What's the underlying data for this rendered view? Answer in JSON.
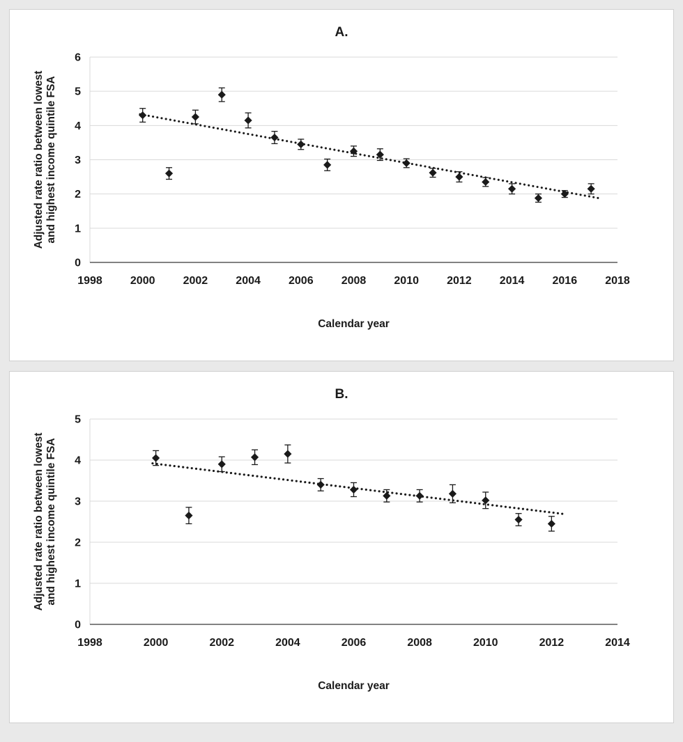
{
  "style": {
    "page_bg": "#e9e9e9",
    "panel_bg": "#ffffff",
    "panel_border": "#cfcfcf",
    "marker_color": "#1a1a1a",
    "grid_color": "#d9d9d9",
    "axis_color": "#595959",
    "text_color": "#1a1a1a"
  },
  "chart_data": [
    {
      "type": "scatter",
      "title": "A.",
      "xlabel": "Calendar year",
      "ylabel_lines": [
        "Adjusted rate ratio between lowest",
        "and highest income quintile FSA"
      ],
      "xlim": [
        1998,
        2018
      ],
      "ylim": [
        0,
        6
      ],
      "xticks": [
        1998,
        2000,
        2002,
        2004,
        2006,
        2008,
        2010,
        2012,
        2014,
        2016,
        2018
      ],
      "yticks": [
        0,
        1,
        2,
        3,
        4,
        5,
        6
      ],
      "grid": "horizontal",
      "legend": "none",
      "points": [
        {
          "x": 2000,
          "y": 4.3,
          "err": 0.2
        },
        {
          "x": 2001,
          "y": 2.6,
          "err": 0.17
        },
        {
          "x": 2002,
          "y": 4.25,
          "err": 0.2
        },
        {
          "x": 2003,
          "y": 4.9,
          "err": 0.2
        },
        {
          "x": 2004,
          "y": 4.15,
          "err": 0.22
        },
        {
          "x": 2005,
          "y": 3.65,
          "err": 0.18
        },
        {
          "x": 2006,
          "y": 3.45,
          "err": 0.15
        },
        {
          "x": 2007,
          "y": 2.85,
          "err": 0.17
        },
        {
          "x": 2008,
          "y": 3.25,
          "err": 0.15
        },
        {
          "x": 2009,
          "y": 3.15,
          "err": 0.17
        },
        {
          "x": 2010,
          "y": 2.9,
          "err": 0.13
        },
        {
          "x": 2011,
          "y": 2.62,
          "err": 0.13
        },
        {
          "x": 2012,
          "y": 2.5,
          "err": 0.15
        },
        {
          "x": 2013,
          "y": 2.35,
          "err": 0.13
        },
        {
          "x": 2014,
          "y": 2.15,
          "err": 0.15
        },
        {
          "x": 2015,
          "y": 1.88,
          "err": 0.12
        },
        {
          "x": 2016,
          "y": 2.0,
          "err": 0.1
        },
        {
          "x": 2017,
          "y": 2.15,
          "err": 0.15
        }
      ],
      "trendline": {
        "x1": 1999.9,
        "y1": 4.33,
        "x2": 2017.35,
        "y2": 1.87,
        "style": "dotted"
      }
    },
    {
      "type": "scatter",
      "title": "B.",
      "xlabel": "Calendar year",
      "ylabel_lines": [
        "Adjusted rate ratio between lowest",
        "and highest income quintile FSA"
      ],
      "xlim": [
        1998,
        2014
      ],
      "ylim": [
        0,
        5
      ],
      "xticks": [
        1998,
        2000,
        2002,
        2004,
        2006,
        2008,
        2010,
        2012,
        2014
      ],
      "yticks": [
        0,
        1,
        2,
        3,
        4,
        5
      ],
      "grid": "horizontal",
      "legend": "none",
      "points": [
        {
          "x": 2000,
          "y": 4.05,
          "err": 0.18
        },
        {
          "x": 2001,
          "y": 2.65,
          "err": 0.2
        },
        {
          "x": 2002,
          "y": 3.9,
          "err": 0.18
        },
        {
          "x": 2003,
          "y": 4.07,
          "err": 0.18
        },
        {
          "x": 2004,
          "y": 4.15,
          "err": 0.22
        },
        {
          "x": 2005,
          "y": 3.4,
          "err": 0.15
        },
        {
          "x": 2006,
          "y": 3.28,
          "err": 0.17
        },
        {
          "x": 2007,
          "y": 3.13,
          "err": 0.15
        },
        {
          "x": 2008,
          "y": 3.13,
          "err": 0.15
        },
        {
          "x": 2009,
          "y": 3.18,
          "err": 0.22
        },
        {
          "x": 2010,
          "y": 3.02,
          "err": 0.2
        },
        {
          "x": 2011,
          "y": 2.55,
          "err": 0.15
        },
        {
          "x": 2012,
          "y": 2.45,
          "err": 0.18
        }
      ],
      "trendline": {
        "x1": 1999.9,
        "y1": 3.92,
        "x2": 2012.45,
        "y2": 2.68,
        "style": "dotted"
      }
    }
  ]
}
